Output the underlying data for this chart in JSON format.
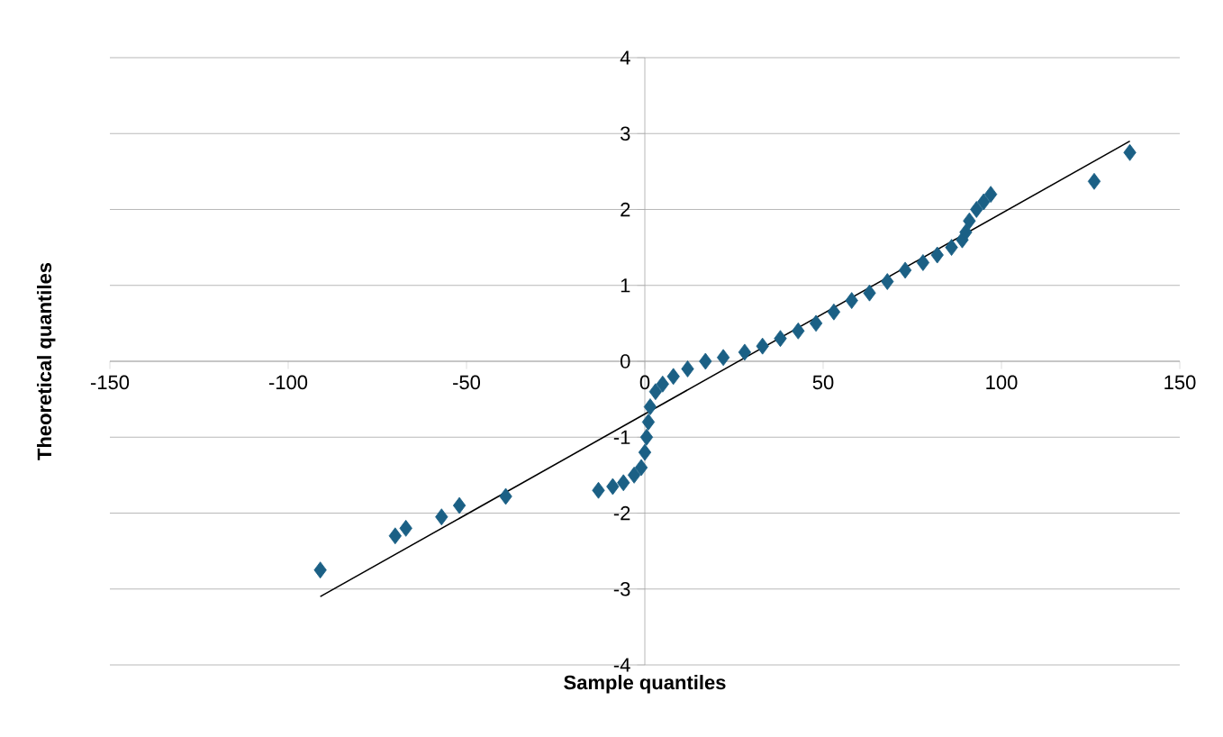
{
  "chart_data": {
    "type": "scatter",
    "xlabel": "Sample quantiles",
    "ylabel": "Theoretical quantiles",
    "xlim": [
      -150,
      150
    ],
    "ylim": [
      -4,
      4
    ],
    "xticks": [
      -150,
      -100,
      -50,
      0,
      50,
      100,
      150
    ],
    "yticks": [
      -4,
      -3,
      -2,
      -1,
      0,
      1,
      2,
      3,
      4
    ],
    "grid": "y",
    "marker": "diamond",
    "series": [
      {
        "color": "#1b6085",
        "x": [
          -91,
          -70,
          -67,
          -57,
          -52,
          -39,
          -13,
          -9,
          -6,
          -3,
          -1,
          0,
          0.5,
          1,
          1.5,
          3,
          5,
          8,
          12,
          17,
          22,
          28,
          33,
          38,
          43,
          48,
          53,
          58,
          63,
          68,
          73,
          78,
          82,
          86,
          89,
          90,
          91,
          93,
          95,
          97,
          126,
          136
        ],
        "values": [
          -2.75,
          -2.3,
          -2.2,
          -2.05,
          -1.9,
          -1.78,
          -1.7,
          -1.65,
          -1.6,
          -1.5,
          -1.4,
          -1.2,
          -1.0,
          -0.8,
          -0.6,
          -0.4,
          -0.3,
          -0.2,
          -0.1,
          0.0,
          0.05,
          0.12,
          0.2,
          0.3,
          0.4,
          0.5,
          0.65,
          0.8,
          0.9,
          1.05,
          1.2,
          1.3,
          1.4,
          1.5,
          1.6,
          1.7,
          1.85,
          2.0,
          2.1,
          2.2,
          2.37,
          2.75
        ]
      },
      {
        "type": "line",
        "color": "#000000",
        "marker": "none",
        "x": [
          -91,
          136
        ],
        "values": [
          -3.1,
          2.9
        ]
      }
    ]
  }
}
